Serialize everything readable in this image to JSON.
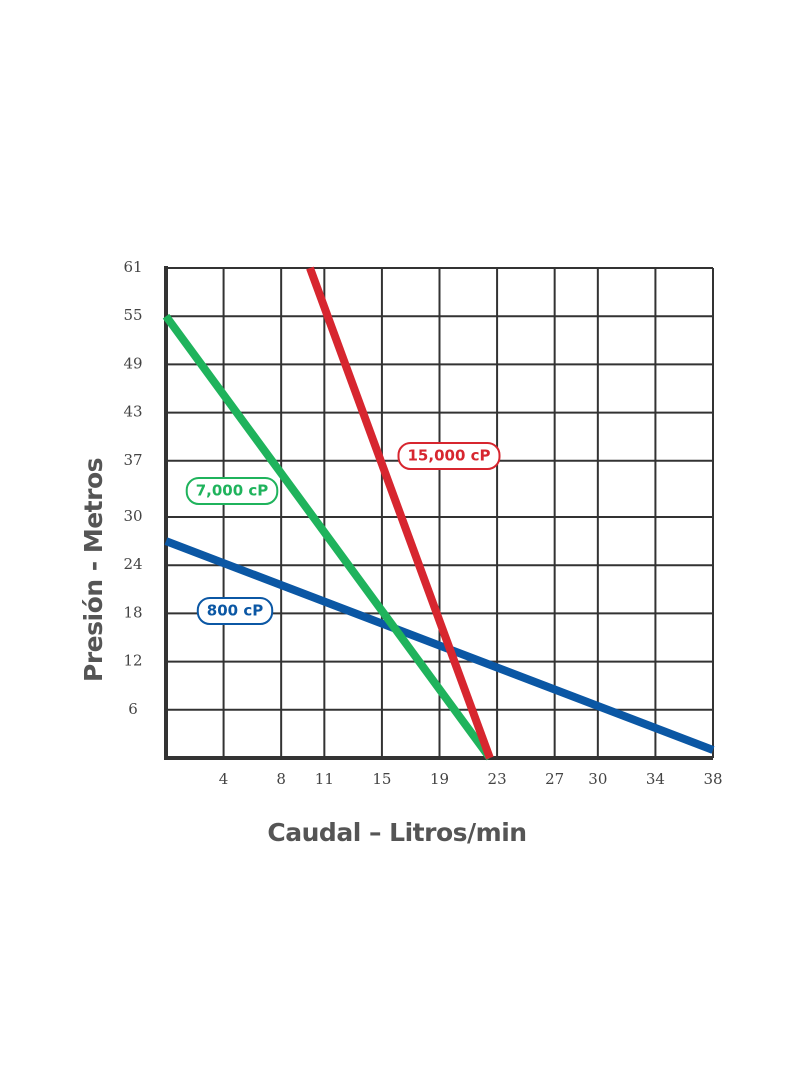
{
  "chart_data": {
    "type": "line",
    "xlabel": "Caudal – Litros/min",
    "ylabel": "Presión - Metros",
    "xlim": [
      0,
      38
    ],
    "xticks": [
      4,
      8,
      11,
      15,
      19,
      23,
      27,
      30,
      34,
      38
    ],
    "ylim": [
      0,
      61
    ],
    "yticks": [
      6,
      12,
      18,
      24,
      30,
      37,
      43,
      49,
      55,
      61
    ],
    "grid": true,
    "series": [
      {
        "name": "800 cP",
        "color": "#0b57a4",
        "x": [
          0,
          38
        ],
        "values": [
          27,
          1
        ]
      },
      {
        "name": "7,000 cP",
        "color": "#1fb35c",
        "x": [
          0,
          22.5
        ],
        "values": [
          55,
          0
        ]
      },
      {
        "name": "15,000 cP",
        "color": "#d7262f",
        "x": [
          10,
          22.5
        ],
        "values": [
          61,
          0
        ]
      }
    ]
  }
}
